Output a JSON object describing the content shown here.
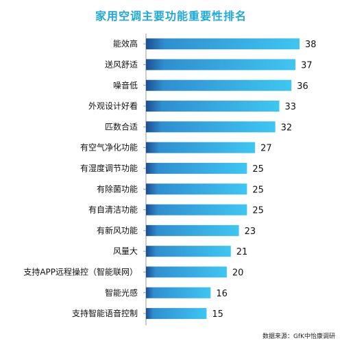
{
  "chart_data": {
    "type": "bar",
    "orientation": "horizontal",
    "title": "家用空调主要功能重要性排名",
    "categories": [
      "能效高",
      "送风舒适",
      "噪音低",
      "外观设计好看",
      "匹数合适",
      "有空气净化功能",
      "有湿度调节功能",
      "有除菌功能",
      "有自清洁功能",
      "有新风功能",
      "风量大",
      "支持APP远程操控（智能联网）",
      "智能光感",
      "支持智能语音控制"
    ],
    "values": [
      38,
      37,
      36,
      33,
      32,
      27,
      25,
      25,
      25,
      23,
      21,
      20,
      16,
      15
    ],
    "xlim": [
      0,
      38
    ],
    "grid": false,
    "source": "数据来源：GfK中怡康调研",
    "colors": {
      "bar_start": "#1c4f92",
      "bar_end": "#3ec6f2",
      "title": "#1fa9d8"
    }
  }
}
